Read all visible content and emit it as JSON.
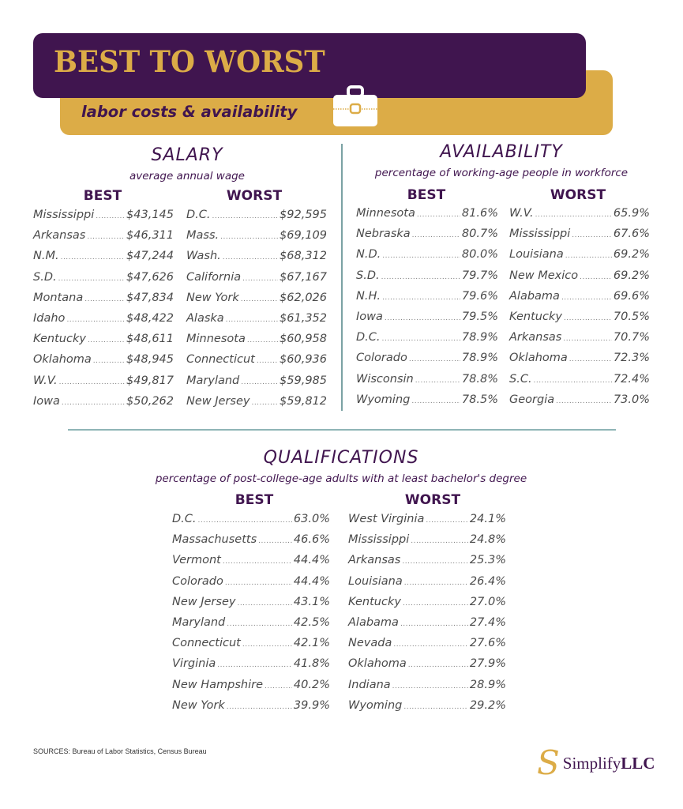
{
  "header": {
    "title": "BEST TO WORST",
    "subtitle": "labor costs & availability",
    "icon": "briefcase-icon",
    "colors": {
      "purple": "#40154f",
      "gold": "#dcac47"
    }
  },
  "salary": {
    "title": "SALARY",
    "subtitle": "average annual wage",
    "best_label": "BEST",
    "worst_label": "WORST",
    "best": [
      {
        "name": "Mississippi",
        "value": "$43,145"
      },
      {
        "name": "Arkansas",
        "value": "$46,311"
      },
      {
        "name": "N.M.",
        "value": "$47,244"
      },
      {
        "name": "S.D.",
        "value": "$47,626"
      },
      {
        "name": "Montana",
        "value": "$47,834"
      },
      {
        "name": "Idaho",
        "value": "$48,422"
      },
      {
        "name": "Kentucky",
        "value": "$48,611"
      },
      {
        "name": "Oklahoma",
        "value": "$48,945"
      },
      {
        "name": "W.V.",
        "value": "$49,817"
      },
      {
        "name": "Iowa",
        "value": "$50,262"
      }
    ],
    "worst": [
      {
        "name": "D.C.",
        "value": "$92,595"
      },
      {
        "name": "Mass.",
        "value": "$69,109"
      },
      {
        "name": "Wash.",
        "value": "$68,312"
      },
      {
        "name": "California",
        "value": "$67,167"
      },
      {
        "name": "New York",
        "value": "$62,026"
      },
      {
        "name": "Alaska",
        "value": "$61,352"
      },
      {
        "name": "Minnesota",
        "value": "$60,958"
      },
      {
        "name": "Connecticut",
        "value": "$60,936"
      },
      {
        "name": "Maryland",
        "value": "$59,985"
      },
      {
        "name": "New Jersey",
        "value": "$59,812"
      }
    ]
  },
  "availability": {
    "title": "AVAILABILITY",
    "subtitle": "percentage of working-age people in workforce",
    "best_label": "BEST",
    "worst_label": "WORST",
    "best": [
      {
        "name": "Minnesota",
        "value": "81.6%"
      },
      {
        "name": "Nebraska",
        "value": "80.7%"
      },
      {
        "name": "N.D.",
        "value": "80.0%"
      },
      {
        "name": "S.D.",
        "value": "79.7%"
      },
      {
        "name": "N.H.",
        "value": "79.6%"
      },
      {
        "name": "Iowa",
        "value": "79.5%"
      },
      {
        "name": "D.C.",
        "value": "78.9%"
      },
      {
        "name": "Colorado",
        "value": "78.9%"
      },
      {
        "name": "Wisconsin",
        "value": "78.8%"
      },
      {
        "name": "Wyoming",
        "value": "78.5%"
      }
    ],
    "worst": [
      {
        "name": "W.V.",
        "value": "65.9%"
      },
      {
        "name": "Mississippi",
        "value": "67.6%"
      },
      {
        "name": "Louisiana",
        "value": "69.2%"
      },
      {
        "name": "New Mexico",
        "value": "69.2%"
      },
      {
        "name": "Alabama",
        "value": "69.6%"
      },
      {
        "name": "Kentucky",
        "value": "70.5%"
      },
      {
        "name": "Arkansas",
        "value": "70.7%"
      },
      {
        "name": "Oklahoma",
        "value": "72.3%"
      },
      {
        "name": "S.C.",
        "value": "72.4%"
      },
      {
        "name": "Georgia",
        "value": "73.0%"
      }
    ]
  },
  "qualifications": {
    "title": "QUALIFICATIONS",
    "subtitle": "percentage of post-college-age adults with at least bachelor's degree",
    "best_label": "BEST",
    "worst_label": "WORST",
    "best": [
      {
        "name": "D.C.",
        "value": "63.0%"
      },
      {
        "name": "Massachusetts",
        "value": "46.6%"
      },
      {
        "name": "Vermont",
        "value": "44.4%"
      },
      {
        "name": "Colorado",
        "value": "44.4%"
      },
      {
        "name": "New Jersey",
        "value": "43.1%"
      },
      {
        "name": "Maryland",
        "value": "42.5%"
      },
      {
        "name": "Connecticut",
        "value": "42.1%"
      },
      {
        "name": "Virginia",
        "value": "41.8%"
      },
      {
        "name": "New Hampshire",
        "value": "40.2%"
      },
      {
        "name": "New York",
        "value": "39.9%"
      }
    ],
    "worst": [
      {
        "name": "West Virginia",
        "value": "24.1%"
      },
      {
        "name": "Mississippi",
        "value": "24.8%"
      },
      {
        "name": "Arkansas",
        "value": "25.3%"
      },
      {
        "name": "Louisiana",
        "value": "26.4%"
      },
      {
        "name": "Kentucky",
        "value": "27.0%"
      },
      {
        "name": "Alabama",
        "value": "27.4%"
      },
      {
        "name": "Nevada",
        "value": "27.6%"
      },
      {
        "name": "Oklahoma",
        "value": "27.9%"
      },
      {
        "name": "Indiana",
        "value": "28.9%"
      },
      {
        "name": "Wyoming",
        "value": "29.2%"
      }
    ]
  },
  "footer": {
    "sources": "SOURCES: Bureau of Labor Statistics, Census Bureau",
    "logo_mark": "S",
    "logo_name": "Simplify",
    "logo_suffix": "LLC"
  }
}
